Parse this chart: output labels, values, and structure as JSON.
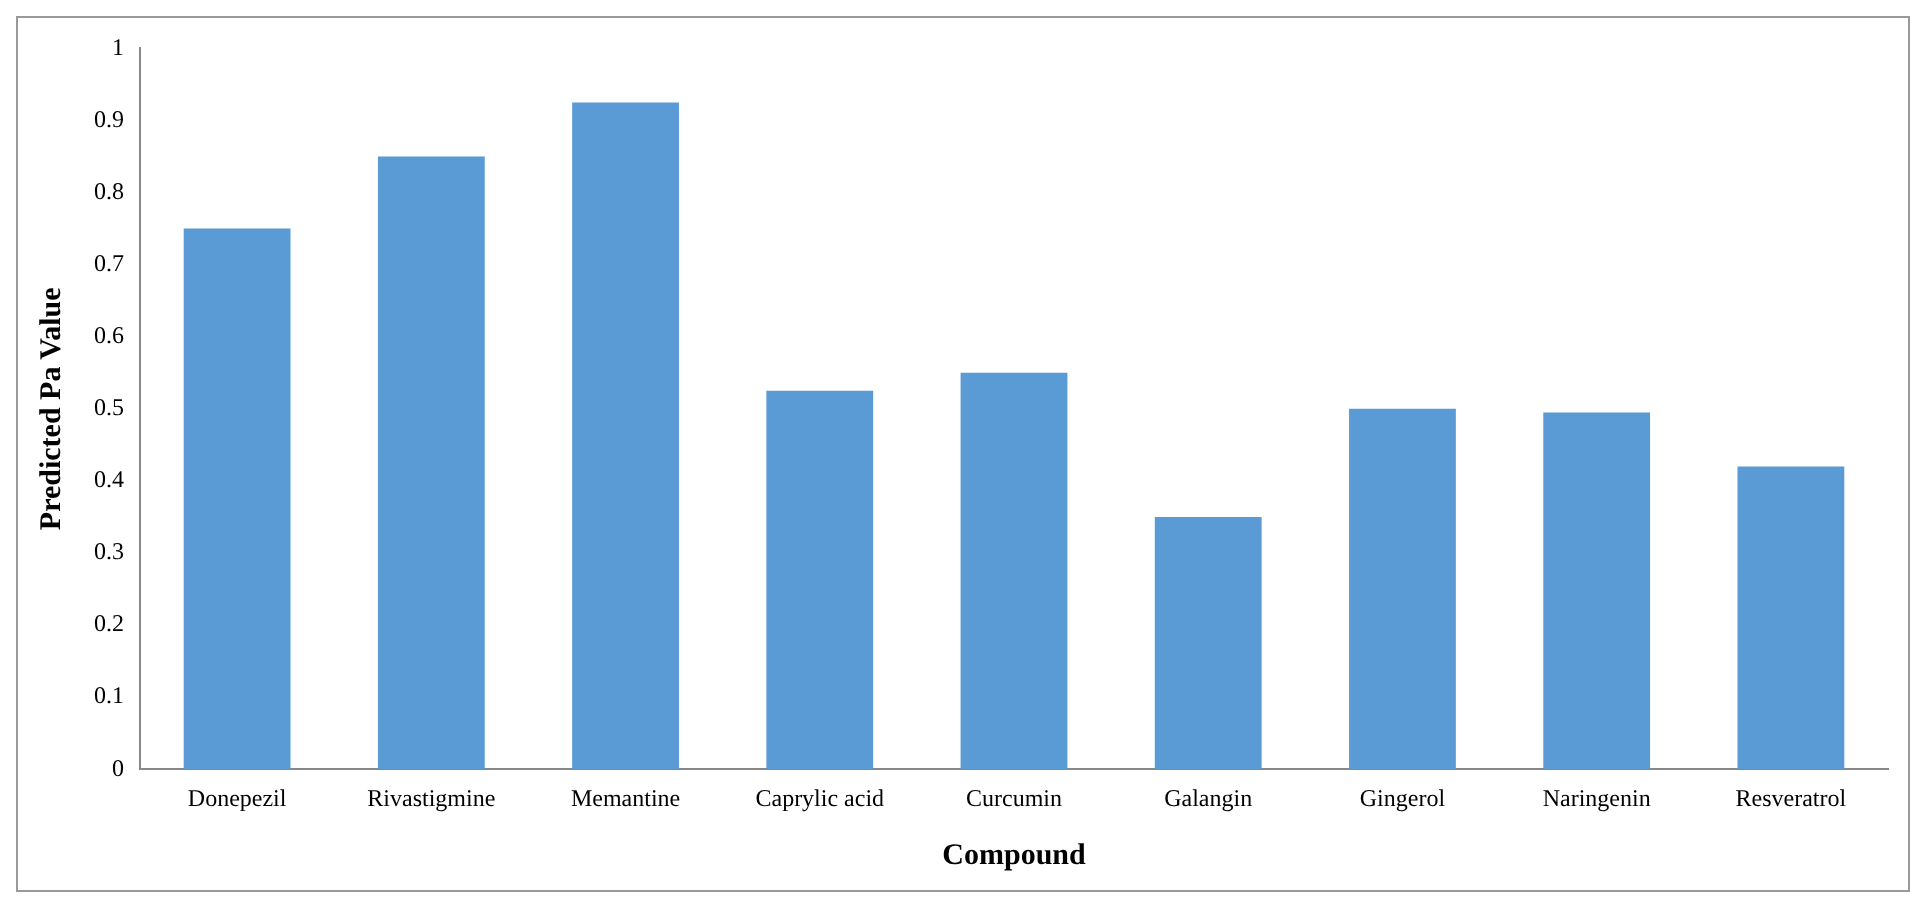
{
  "chart_data": {
    "type": "bar",
    "xlabel": "Compound",
    "ylabel": "Predicted Pa Value",
    "categories": [
      "Donepezil",
      "Rivastigmine",
      "Memantine",
      "Caprylic acid",
      "Curcumin",
      "Galangin",
      "Gingerol",
      "Naringenin",
      "Resveratrol"
    ],
    "values": [
      0.75,
      0.85,
      0.925,
      0.525,
      0.55,
      0.35,
      0.5,
      0.495,
      0.42
    ],
    "color": "#5b9bd5",
    "ylim": [
      0,
      1
    ],
    "yticks": [
      0,
      0.1,
      0.2,
      0.3,
      0.4,
      0.5,
      0.6,
      0.7,
      0.8,
      0.9,
      1
    ],
    "grid": false,
    "legend": false
  }
}
